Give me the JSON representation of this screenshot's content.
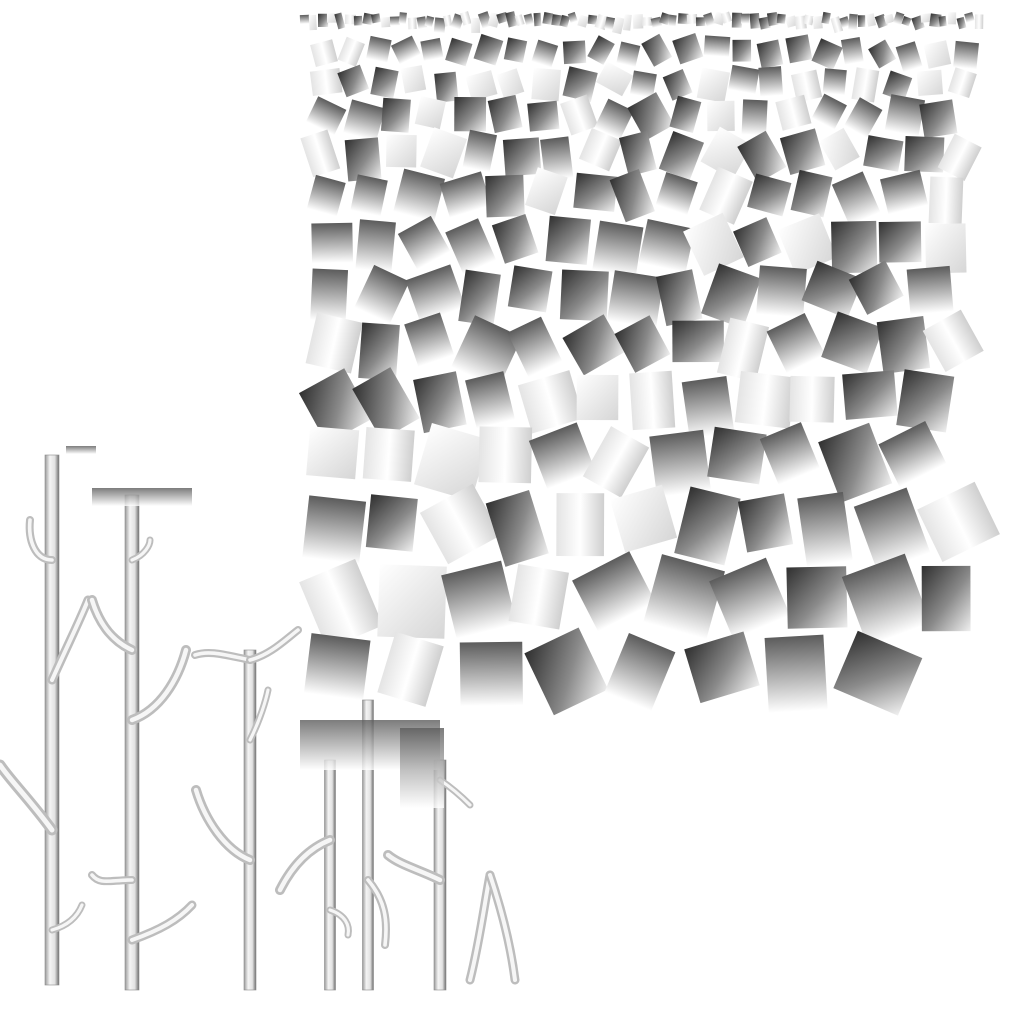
{
  "texture_atlas": {
    "background_color": "#ffffff",
    "tile_color_light": "#f2f2f2",
    "tile_color_mid": "#a8a8a8",
    "tile_color_dark": "#3a3a3a",
    "branch_color_light": "#f4f4f4",
    "branch_color_dark": "#5a5a5a"
  }
}
